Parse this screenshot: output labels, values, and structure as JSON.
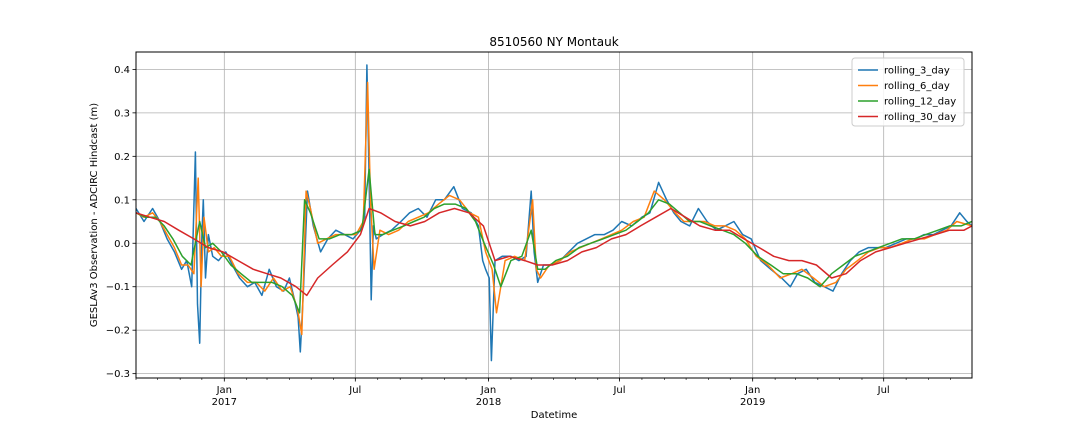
{
  "chart_data": {
    "type": "line",
    "title": "8510560 NY Montauk",
    "xlabel": "Datetime",
    "ylabel": "GESLAv3 Observation - ADCIRC Hindcast (m)",
    "xlim": [
      "2016-09-01",
      "2019-10-31"
    ],
    "ylim": [
      -0.31,
      0.44
    ],
    "yticks": [
      -0.3,
      -0.2,
      -0.1,
      0.0,
      0.1,
      0.2,
      0.3,
      0.4
    ],
    "ytick_labels": [
      "−0.3",
      "−0.2",
      "−0.1",
      "0.0",
      "0.1",
      "0.2",
      "0.3",
      "0.4"
    ],
    "xticks_major": [
      {
        "date": "2017-01-01",
        "label": "Jan",
        "sublabel": "2017"
      },
      {
        "date": "2017-07-01",
        "label": "Jul",
        "sublabel": ""
      },
      {
        "date": "2018-01-01",
        "label": "Jan",
        "sublabel": "2018"
      },
      {
        "date": "2018-07-01",
        "label": "Jul",
        "sublabel": ""
      },
      {
        "date": "2019-01-01",
        "label": "Jan",
        "sublabel": "2019"
      },
      {
        "date": "2019-07-01",
        "label": "Jul",
        "sublabel": ""
      }
    ],
    "grid": true,
    "legend_position": "top-right",
    "series": [
      {
        "name": "rolling_3_day",
        "color": "#1f77b4",
        "x": [
          "2016-09-01",
          "2016-09-12",
          "2016-09-24",
          "2016-10-04",
          "2016-10-14",
          "2016-10-24",
          "2016-11-03",
          "2016-11-10",
          "2016-11-17",
          "2016-11-22",
          "2016-11-25",
          "2016-11-28",
          "2016-12-01",
          "2016-12-03",
          "2016-12-06",
          "2016-12-10",
          "2016-12-16",
          "2016-12-24",
          "2017-01-03",
          "2017-01-12",
          "2017-01-22",
          "2017-02-02",
          "2017-02-12",
          "2017-02-22",
          "2017-03-04",
          "2017-03-14",
          "2017-03-24",
          "2017-04-01",
          "2017-04-08",
          "2017-04-13",
          "2017-04-16",
          "2017-04-20",
          "2017-04-26",
          "2017-05-04",
          "2017-05-14",
          "2017-05-24",
          "2017-06-04",
          "2017-06-16",
          "2017-06-28",
          "2017-07-08",
          "2017-07-14",
          "2017-07-17",
          "2017-07-20",
          "2017-07-23",
          "2017-07-26",
          "2017-07-30",
          "2017-08-08",
          "2017-08-20",
          "2017-09-02",
          "2017-09-14",
          "2017-09-26",
          "2017-10-08",
          "2017-10-20",
          "2017-11-01",
          "2017-11-14",
          "2017-11-26",
          "2017-12-08",
          "2017-12-18",
          "2017-12-24",
          "2017-12-28",
          "2018-01-02",
          "2018-01-05",
          "2018-01-10",
          "2018-01-20",
          "2018-02-01",
          "2018-02-12",
          "2018-02-22",
          "2018-03-01",
          "2018-03-05",
          "2018-03-10",
          "2018-03-18",
          "2018-03-28",
          "2018-04-10",
          "2018-04-22",
          "2018-05-04",
          "2018-05-16",
          "2018-05-28",
          "2018-06-10",
          "2018-06-22",
          "2018-07-04",
          "2018-07-18",
          "2018-08-01",
          "2018-08-12",
          "2018-08-24",
          "2018-09-04",
          "2018-09-14",
          "2018-09-24",
          "2018-10-06",
          "2018-10-18",
          "2018-10-30",
          "2018-11-12",
          "2018-11-24",
          "2018-12-06",
          "2018-12-18",
          "2018-12-30",
          "2019-01-12",
          "2019-01-26",
          "2019-02-10",
          "2019-02-22",
          "2019-03-04",
          "2019-03-16",
          "2019-03-28",
          "2019-04-10",
          "2019-04-22",
          "2019-05-04",
          "2019-05-16",
          "2019-05-28",
          "2019-06-10",
          "2019-06-22",
          "2019-07-04",
          "2019-07-18",
          "2019-08-01",
          "2019-08-14",
          "2019-08-26",
          "2019-09-08",
          "2019-09-20",
          "2019-10-02",
          "2019-10-14",
          "2019-10-24",
          "2019-10-31"
        ],
        "y": [
          0.08,
          0.05,
          0.08,
          0.05,
          0.01,
          -0.02,
          -0.06,
          -0.04,
          -0.1,
          0.21,
          -0.14,
          -0.23,
          0.02,
          0.1,
          -0.08,
          0.02,
          -0.03,
          -0.04,
          -0.02,
          -0.05,
          -0.08,
          -0.1,
          -0.09,
          -0.12,
          -0.06,
          -0.1,
          -0.11,
          -0.08,
          -0.13,
          -0.17,
          -0.25,
          -0.12,
          0.12,
          0.04,
          -0.02,
          0.01,
          0.03,
          0.02,
          0.01,
          0.03,
          0.06,
          0.41,
          0.15,
          -0.13,
          0.04,
          0.01,
          0.02,
          0.03,
          0.05,
          0.07,
          0.08,
          0.06,
          0.1,
          0.1,
          0.13,
          0.08,
          0.07,
          0.04,
          -0.04,
          -0.06,
          -0.08,
          -0.27,
          -0.04,
          -0.03,
          -0.03,
          -0.04,
          -0.03,
          0.12,
          -0.02,
          -0.09,
          -0.05,
          -0.05,
          -0.04,
          -0.02,
          0.0,
          0.01,
          0.02,
          0.02,
          0.03,
          0.05,
          0.04,
          0.06,
          0.07,
          0.14,
          0.1,
          0.07,
          0.05,
          0.04,
          0.08,
          0.05,
          0.03,
          0.04,
          0.05,
          0.02,
          0.01,
          -0.04,
          -0.06,
          -0.08,
          -0.1,
          -0.07,
          -0.06,
          -0.09,
          -0.1,
          -0.11,
          -0.07,
          -0.04,
          -0.02,
          -0.01,
          -0.01,
          -0.01,
          0.0,
          0.01,
          0.01,
          0.02,
          0.02,
          0.03,
          0.04,
          0.07,
          0.05,
          0.04
        ]
      },
      {
        "name": "rolling_6_day",
        "color": "#ff7f0e",
        "x": [
          "2016-09-01",
          "2016-09-12",
          "2016-09-24",
          "2016-10-04",
          "2016-10-14",
          "2016-10-24",
          "2016-11-03",
          "2016-11-12",
          "2016-11-20",
          "2016-11-26",
          "2016-11-30",
          "2016-12-04",
          "2016-12-10",
          "2016-12-18",
          "2016-12-28",
          "2017-01-08",
          "2017-01-20",
          "2017-02-02",
          "2017-02-14",
          "2017-02-26",
          "2017-03-10",
          "2017-03-22",
          "2017-04-02",
          "2017-04-12",
          "2017-04-18",
          "2017-04-24",
          "2017-04-30",
          "2017-05-10",
          "2017-05-22",
          "2017-06-04",
          "2017-06-18",
          "2017-07-02",
          "2017-07-12",
          "2017-07-18",
          "2017-07-22",
          "2017-07-27",
          "2017-08-04",
          "2017-08-16",
          "2017-08-30",
          "2017-09-12",
          "2017-09-26",
          "2017-10-10",
          "2017-10-24",
          "2017-11-08",
          "2017-11-22",
          "2017-12-06",
          "2017-12-18",
          "2017-12-28",
          "2018-01-06",
          "2018-01-12",
          "2018-01-24",
          "2018-02-06",
          "2018-02-20",
          "2018-03-03",
          "2018-03-08",
          "2018-03-14",
          "2018-03-26",
          "2018-04-10",
          "2018-04-24",
          "2018-05-08",
          "2018-05-22",
          "2018-06-06",
          "2018-06-20",
          "2018-07-04",
          "2018-07-20",
          "2018-08-04",
          "2018-08-18",
          "2018-09-01",
          "2018-09-16",
          "2018-09-28",
          "2018-10-12",
          "2018-10-26",
          "2018-11-10",
          "2018-11-24",
          "2018-12-08",
          "2018-12-22",
          "2019-01-06",
          "2019-01-22",
          "2019-02-08",
          "2019-02-24",
          "2019-03-10",
          "2019-03-26",
          "2019-04-10",
          "2019-04-26",
          "2019-05-10",
          "2019-05-26",
          "2019-06-10",
          "2019-06-26",
          "2019-07-10",
          "2019-07-26",
          "2019-08-10",
          "2019-08-26",
          "2019-09-10",
          "2019-09-26",
          "2019-10-10",
          "2019-10-31"
        ],
        "y": [
          0.07,
          0.06,
          0.07,
          0.05,
          0.02,
          -0.01,
          -0.05,
          -0.05,
          -0.07,
          0.15,
          -0.1,
          0.06,
          -0.02,
          -0.01,
          -0.03,
          -0.03,
          -0.07,
          -0.09,
          -0.09,
          -0.11,
          -0.08,
          -0.11,
          -0.1,
          -0.15,
          -0.21,
          0.12,
          0.08,
          0.0,
          0.01,
          0.02,
          0.02,
          0.02,
          0.05,
          0.37,
          0.1,
          -0.06,
          0.03,
          0.02,
          0.03,
          0.05,
          0.06,
          0.07,
          0.09,
          0.11,
          0.1,
          0.07,
          0.06,
          -0.02,
          -0.06,
          -0.16,
          -0.04,
          -0.03,
          -0.04,
          0.1,
          -0.06,
          -0.08,
          -0.05,
          -0.04,
          -0.02,
          -0.01,
          0.0,
          0.01,
          0.02,
          0.03,
          0.05,
          0.06,
          0.12,
          0.1,
          0.07,
          0.05,
          0.05,
          0.05,
          0.04,
          0.04,
          0.03,
          0.01,
          -0.03,
          -0.05,
          -0.08,
          -0.07,
          -0.06,
          -0.08,
          -0.1,
          -0.09,
          -0.06,
          -0.04,
          -0.02,
          -0.01,
          -0.01,
          0.0,
          0.01,
          0.01,
          0.02,
          0.03,
          0.05,
          0.04
        ]
      },
      {
        "name": "rolling_12_day",
        "color": "#2ca02c",
        "x": [
          "2016-09-01",
          "2016-09-14",
          "2016-09-28",
          "2016-10-10",
          "2016-10-22",
          "2016-11-04",
          "2016-11-16",
          "2016-11-28",
          "2016-12-06",
          "2016-12-16",
          "2016-12-28",
          "2017-01-10",
          "2017-01-24",
          "2017-02-08",
          "2017-02-22",
          "2017-03-08",
          "2017-03-22",
          "2017-04-05",
          "2017-04-15",
          "2017-04-22",
          "2017-04-30",
          "2017-05-12",
          "2017-05-26",
          "2017-06-10",
          "2017-06-26",
          "2017-07-10",
          "2017-07-20",
          "2017-07-28",
          "2017-08-08",
          "2017-08-22",
          "2017-09-06",
          "2017-09-20",
          "2017-10-04",
          "2017-10-18",
          "2017-11-01",
          "2017-11-16",
          "2017-12-01",
          "2017-12-14",
          "2017-12-26",
          "2018-01-08",
          "2018-01-18",
          "2018-02-01",
          "2018-02-16",
          "2018-03-01",
          "2018-03-10",
          "2018-03-20",
          "2018-04-04",
          "2018-04-20",
          "2018-05-06",
          "2018-05-22",
          "2018-06-08",
          "2018-06-24",
          "2018-07-10",
          "2018-07-26",
          "2018-08-10",
          "2018-08-24",
          "2018-09-08",
          "2018-09-22",
          "2018-10-06",
          "2018-10-20",
          "2018-11-04",
          "2018-11-20",
          "2018-12-06",
          "2018-12-22",
          "2019-01-08",
          "2019-01-26",
          "2019-02-12",
          "2019-03-02",
          "2019-03-18",
          "2019-04-04",
          "2019-04-20",
          "2019-05-06",
          "2019-05-22",
          "2019-06-08",
          "2019-06-24",
          "2019-07-10",
          "2019-07-26",
          "2019-08-12",
          "2019-08-28",
          "2019-09-14",
          "2019-09-30",
          "2019-10-16",
          "2019-10-31"
        ],
        "y": [
          0.07,
          0.06,
          0.06,
          0.04,
          0.01,
          -0.03,
          -0.05,
          0.05,
          -0.01,
          0.0,
          -0.02,
          -0.05,
          -0.07,
          -0.09,
          -0.09,
          -0.09,
          -0.1,
          -0.12,
          -0.16,
          0.1,
          0.07,
          0.01,
          0.01,
          0.02,
          0.02,
          0.03,
          0.17,
          0.02,
          0.02,
          0.03,
          0.04,
          0.05,
          0.06,
          0.08,
          0.09,
          0.09,
          0.08,
          0.05,
          0.0,
          -0.05,
          -0.1,
          -0.04,
          -0.03,
          0.03,
          -0.06,
          -0.06,
          -0.04,
          -0.03,
          -0.01,
          0.0,
          0.01,
          0.02,
          0.03,
          0.05,
          0.07,
          0.1,
          0.09,
          0.07,
          0.05,
          0.05,
          0.04,
          0.03,
          0.02,
          0.0,
          -0.03,
          -0.05,
          -0.07,
          -0.07,
          -0.08,
          -0.1,
          -0.07,
          -0.05,
          -0.03,
          -0.02,
          -0.01,
          0.0,
          0.01,
          0.01,
          0.02,
          0.03,
          0.04,
          0.04,
          0.05
        ]
      },
      {
        "name": "rolling_30_day",
        "color": "#d62728",
        "x": [
          "2016-09-01",
          "2016-09-20",
          "2016-10-10",
          "2016-10-30",
          "2016-11-20",
          "2016-12-10",
          "2016-12-30",
          "2017-01-20",
          "2017-02-10",
          "2017-03-01",
          "2017-03-20",
          "2017-04-10",
          "2017-04-25",
          "2017-05-10",
          "2017-05-30",
          "2017-06-20",
          "2017-07-08",
          "2017-07-20",
          "2017-08-05",
          "2017-08-25",
          "2017-09-15",
          "2017-10-05",
          "2017-10-25",
          "2017-11-15",
          "2017-12-05",
          "2017-12-25",
          "2018-01-10",
          "2018-01-30",
          "2018-02-20",
          "2018-03-10",
          "2018-03-30",
          "2018-04-20",
          "2018-05-10",
          "2018-05-30",
          "2018-06-20",
          "2018-07-10",
          "2018-07-30",
          "2018-08-20",
          "2018-09-10",
          "2018-09-30",
          "2018-10-20",
          "2018-11-10",
          "2018-11-30",
          "2018-12-20",
          "2019-01-10",
          "2019-01-30",
          "2019-02-20",
          "2019-03-10",
          "2019-03-30",
          "2019-04-20",
          "2019-05-10",
          "2019-05-30",
          "2019-06-20",
          "2019-07-10",
          "2019-07-30",
          "2019-08-20",
          "2019-09-10",
          "2019-09-30",
          "2019-10-20",
          "2019-10-31"
        ],
        "y": [
          0.07,
          0.06,
          0.05,
          0.03,
          0.01,
          -0.01,
          -0.02,
          -0.04,
          -0.06,
          -0.07,
          -0.08,
          -0.1,
          -0.12,
          -0.08,
          -0.05,
          -0.02,
          0.02,
          0.08,
          0.07,
          0.05,
          0.04,
          0.05,
          0.07,
          0.08,
          0.07,
          0.04,
          -0.04,
          -0.03,
          -0.04,
          -0.05,
          -0.05,
          -0.04,
          -0.02,
          -0.01,
          0.01,
          0.02,
          0.04,
          0.06,
          0.08,
          0.06,
          0.04,
          0.03,
          0.03,
          0.01,
          -0.01,
          -0.03,
          -0.04,
          -0.04,
          -0.05,
          -0.08,
          -0.07,
          -0.04,
          -0.02,
          -0.01,
          0.0,
          0.01,
          0.02,
          0.03,
          0.03,
          0.04
        ]
      }
    ]
  }
}
